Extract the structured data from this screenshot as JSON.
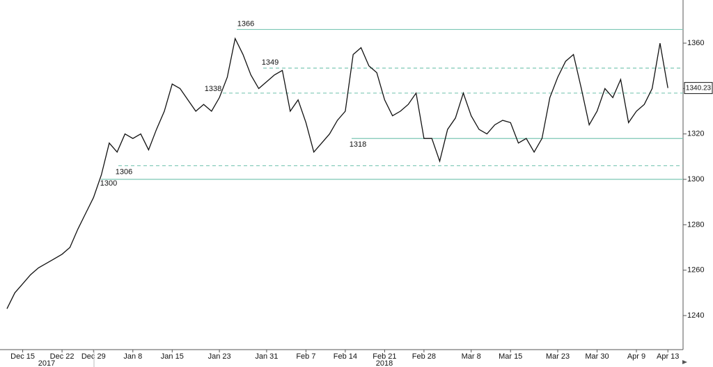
{
  "chart_data": {
    "type": "line",
    "categories": [
      null,
      null,
      "Dec 15",
      null,
      null,
      null,
      null,
      "Dec 22",
      null,
      null,
      null,
      "Dec 29",
      null,
      null,
      null,
      null,
      "Jan 8",
      null,
      null,
      null,
      null,
      "Jan 15",
      null,
      null,
      null,
      null,
      null,
      "Jan 23",
      null,
      null,
      null,
      null,
      null,
      "Jan 31",
      null,
      null,
      null,
      null,
      "Feb 7",
      null,
      null,
      null,
      null,
      "Feb 14",
      null,
      null,
      null,
      null,
      "Feb 21",
      null,
      null,
      null,
      null,
      "Feb 28",
      null,
      null,
      null,
      null,
      null,
      "Mar 8",
      null,
      null,
      null,
      null,
      "Mar 15",
      null,
      null,
      null,
      null,
      null,
      "Mar 23",
      null,
      null,
      null,
      null,
      "Mar 30",
      null,
      null,
      null,
      null,
      "Apr 9",
      null,
      null,
      null,
      "Apr 13"
    ],
    "years": [
      "2017",
      "2018"
    ],
    "series": [
      {
        "color": "#111111",
        "values": [
          1243,
          1250,
          1254,
          1258,
          1261,
          1263,
          1265,
          1267,
          1270,
          1278,
          1285,
          1292,
          1302,
          1316,
          1312,
          1320,
          1318,
          1320,
          1313,
          1322,
          1330,
          1342,
          1340,
          1335,
          1330,
          1333,
          1330,
          1336,
          1345,
          1362,
          1355,
          1346,
          1340,
          1343,
          1346,
          1348,
          1330,
          1335,
          1325,
          1312,
          1316,
          1320,
          1326,
          1330,
          1355,
          1358,
          1350,
          1347,
          1335,
          1328,
          1330,
          1333,
          1338,
          1318,
          1318,
          1308,
          1322,
          1327,
          1338,
          1328,
          1322,
          1320,
          1324,
          1326,
          1325,
          1316,
          1318,
          1312,
          1318,
          1336,
          1345,
          1352,
          1355,
          1340,
          1324,
          1330,
          1340,
          1336,
          1344,
          1325,
          1330,
          1333,
          1340,
          1360,
          1340.23
        ]
      }
    ],
    "ylim": [
      1225,
      1379
    ],
    "yticks": [
      1240,
      1260,
      1280,
      1300,
      1320,
      1340,
      1360
    ],
    "annotations": [
      {
        "value": 1366,
        "style": "solid"
      },
      {
        "value": 1349,
        "style": "dashed"
      },
      {
        "value": 1338,
        "style": "dashed"
      },
      {
        "value": 1318,
        "style": "solid"
      },
      {
        "value": 1306,
        "style": "dashed"
      },
      {
        "value": 1300,
        "style": "solid"
      }
    ],
    "annotation_color": "#7cc7b5"
  }
}
